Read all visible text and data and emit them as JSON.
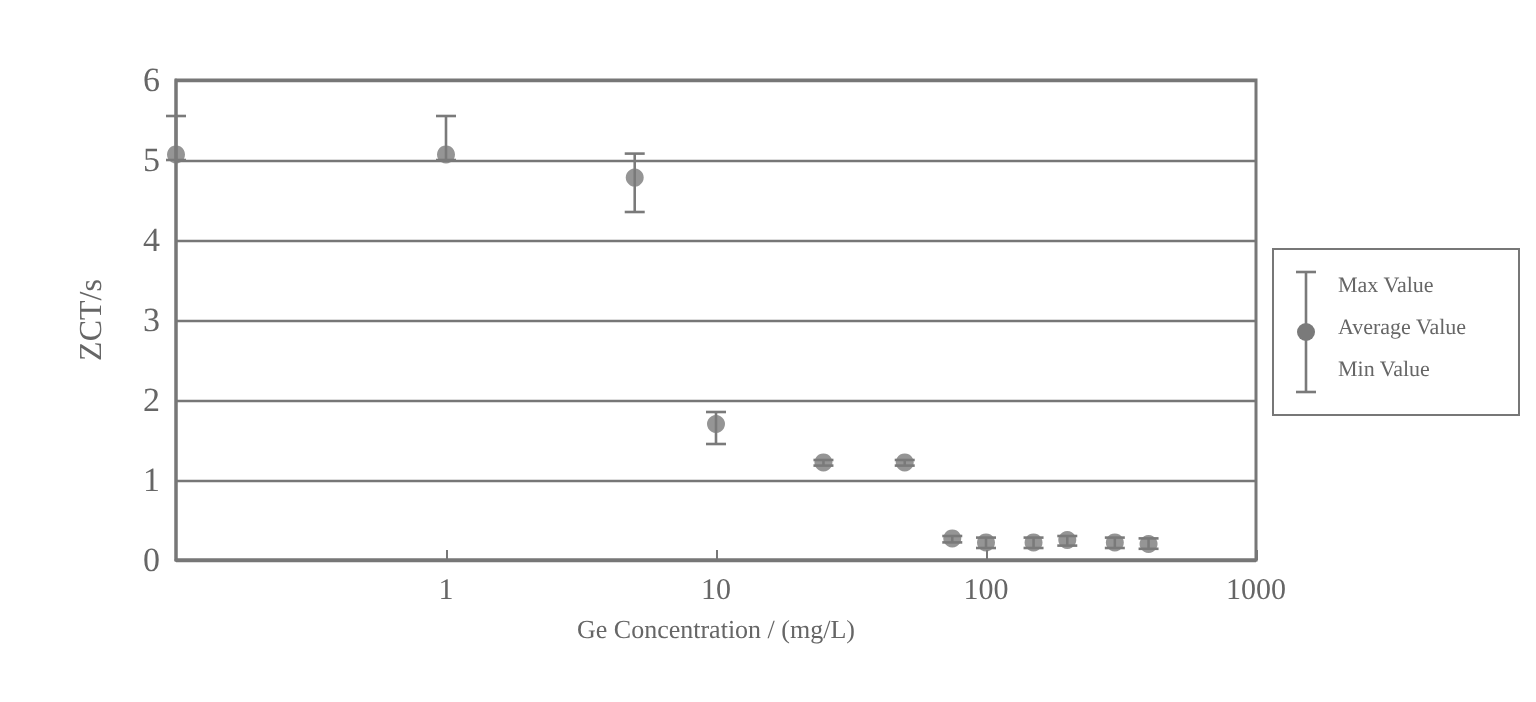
{
  "chart_data": {
    "type": "scatter",
    "xlabel": "Ge Concentration / (mg/L)",
    "ylabel": "ZCT/s",
    "log": "x",
    "xlim": [
      0.1,
      1000
    ],
    "xticks": [
      1,
      10,
      100,
      1000
    ],
    "ylim": [
      0,
      6
    ],
    "yticks": [
      0,
      1,
      2,
      3,
      4,
      5,
      6
    ],
    "grid": "y",
    "legend": "right",
    "marker": "circle",
    "annotations": [
      "Max Value",
      "Min Value"
    ],
    "series": [
      {
        "name": "Average Value",
        "color": "#7a7a7a",
        "x": [
          0.1,
          1,
          5,
          10,
          25,
          50,
          75,
          100,
          150,
          200,
          300,
          400
        ],
        "values": [
          5.07,
          5.07,
          4.78,
          1.7,
          1.22,
          1.22,
          0.27,
          0.22,
          0.22,
          0.25,
          0.22,
          0.2
        ],
        "errors": [
          [
            5.0,
            5.55
          ],
          [
            5.0,
            5.55
          ],
          [
            4.35,
            5.08
          ],
          [
            1.45,
            1.85
          ],
          [
            1.18,
            1.25
          ],
          [
            1.18,
            1.25
          ],
          [
            0.22,
            0.3
          ],
          [
            0.15,
            0.28
          ],
          [
            0.15,
            0.28
          ],
          [
            0.18,
            0.3
          ],
          [
            0.15,
            0.28
          ],
          [
            0.14,
            0.27
          ]
        ]
      }
    ]
  }
}
